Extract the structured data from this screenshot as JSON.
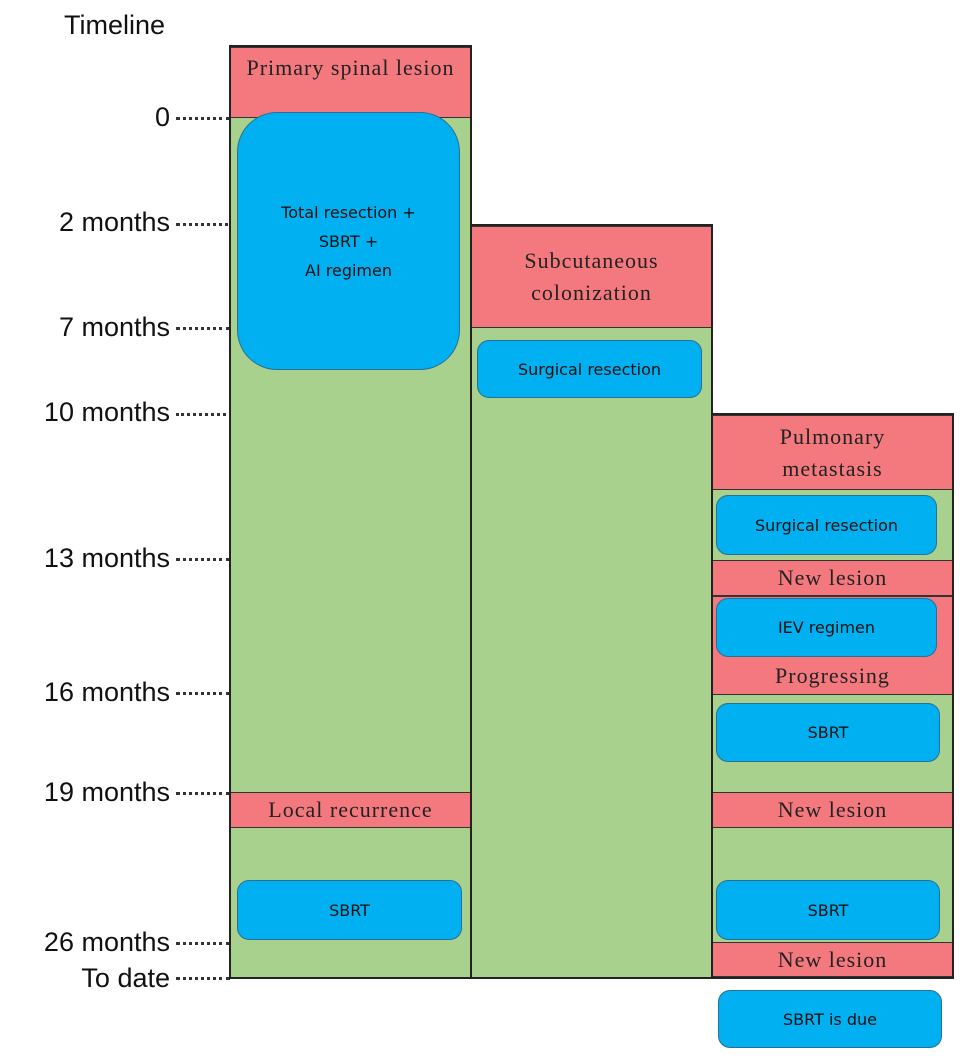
{
  "timeline": {
    "title": "Timeline",
    "ticks": [
      "0",
      "2 months",
      "7 months",
      "10 months",
      "13 months",
      "16 months",
      "19 months",
      "26 months",
      "To date"
    ]
  },
  "columns": [
    {
      "events": [
        "Primary spinal lesion",
        "Local recurrence"
      ],
      "treatments": [
        [
          "Total resection +",
          "SBRT +",
          "AI regimen"
        ],
        "SBRT"
      ]
    },
    {
      "events": [
        "Subcutaneous colonization"
      ],
      "treatments": [
        "Surgical resection"
      ]
    },
    {
      "events": [
        "Pulmonary metastasis",
        "New lesion",
        "Progressing",
        "New lesion",
        "New lesion"
      ],
      "treatments": [
        "Surgical resection",
        "IEV regimen",
        "SBRT",
        "SBRT",
        "SBRT is due"
      ]
    }
  ]
}
